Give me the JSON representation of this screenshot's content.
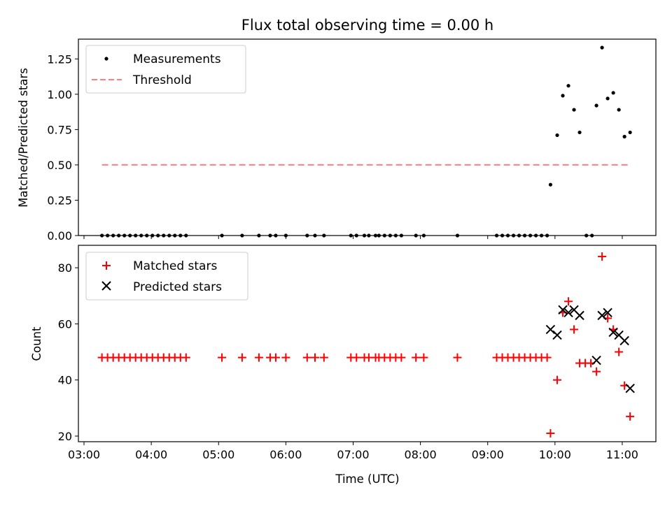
{
  "figure_title": "Flux total observing time = 0.00 h",
  "chart_data": [
    {
      "type": "scatter",
      "panel": "top",
      "ylabel": "Matched/Predicted stars",
      "xlabel": "",
      "xlim": [
        "02:55",
        "11:30"
      ],
      "ylim": [
        0,
        1.39
      ],
      "xticks": [
        "03:00",
        "04:00",
        "05:00",
        "06:00",
        "07:00",
        "08:00",
        "09:00",
        "10:00",
        "11:00"
      ],
      "yticks": [
        0.0,
        0.25,
        0.5,
        0.75,
        1.0,
        1.25
      ],
      "ytick_labels": [
        "0.00",
        "0.25",
        "0.50",
        "0.75",
        "1.00",
        "1.25"
      ],
      "legend_location": "upper-left",
      "series": [
        {
          "name": "Measurements",
          "kind": "scatter",
          "color": "#000000",
          "marker": "dot",
          "points": [
            [
              "03:16",
              0
            ],
            [
              "03:21",
              0
            ],
            [
              "03:26",
              0
            ],
            [
              "03:31",
              0
            ],
            [
              "03:36",
              0
            ],
            [
              "03:41",
              0
            ],
            [
              "03:46",
              0
            ],
            [
              "03:51",
              0
            ],
            [
              "03:56",
              0
            ],
            [
              "04:01",
              0
            ],
            [
              "04:06",
              0
            ],
            [
              "04:11",
              0
            ],
            [
              "04:16",
              0
            ],
            [
              "04:21",
              0
            ],
            [
              "04:26",
              0
            ],
            [
              "04:31",
              0
            ],
            [
              "05:03",
              0
            ],
            [
              "05:21",
              0
            ],
            [
              "05:36",
              0
            ],
            [
              "05:46",
              0
            ],
            [
              "05:51",
              0
            ],
            [
              "06:00",
              0
            ],
            [
              "06:19",
              0
            ],
            [
              "06:26",
              0
            ],
            [
              "06:34",
              0
            ],
            [
              "06:58",
              0
            ],
            [
              "07:03",
              0
            ],
            [
              "07:10",
              0
            ],
            [
              "07:14",
              0
            ],
            [
              "07:20",
              0
            ],
            [
              "07:23",
              0
            ],
            [
              "07:28",
              0
            ],
            [
              "07:33",
              0
            ],
            [
              "07:38",
              0
            ],
            [
              "07:43",
              0
            ],
            [
              "07:56",
              0
            ],
            [
              "08:03",
              0
            ],
            [
              "08:33",
              0
            ],
            [
              "09:08",
              0
            ],
            [
              "09:13",
              0
            ],
            [
              "09:18",
              0
            ],
            [
              "09:23",
              0
            ],
            [
              "09:28",
              0
            ],
            [
              "09:33",
              0
            ],
            [
              "09:38",
              0
            ],
            [
              "09:43",
              0
            ],
            [
              "09:48",
              0
            ],
            [
              "09:53",
              0
            ],
            [
              "10:28",
              0
            ],
            [
              "10:33",
              0
            ],
            [
              "09:56",
              0.36
            ],
            [
              "10:02",
              0.71
            ],
            [
              "10:07",
              0.99
            ],
            [
              "10:12",
              1.06
            ],
            [
              "10:17",
              0.89
            ],
            [
              "10:22",
              0.73
            ],
            [
              "10:37",
              0.92
            ],
            [
              "10:42",
              1.33
            ],
            [
              "10:47",
              0.97
            ],
            [
              "10:52",
              1.01
            ],
            [
              "10:57",
              0.89
            ],
            [
              "11:02",
              0.7
            ],
            [
              "11:07",
              0.73
            ]
          ]
        },
        {
          "name": "Threshold",
          "kind": "line",
          "color": "#ff7f7f",
          "dash": true,
          "points": [
            [
              "03:16",
              0.5
            ],
            [
              "11:07",
              0.5
            ]
          ]
        }
      ]
    },
    {
      "type": "scatter",
      "panel": "bottom",
      "ylabel": "Count",
      "xlabel": "Time (UTC)",
      "xlim": [
        "02:55",
        "11:30"
      ],
      "ylim": [
        18,
        88
      ],
      "xticks": [
        "03:00",
        "04:00",
        "05:00",
        "06:00",
        "07:00",
        "08:00",
        "09:00",
        "10:00",
        "11:00"
      ],
      "yticks": [
        20,
        40,
        60,
        80
      ],
      "ytick_labels": [
        "20",
        "40",
        "60",
        "80"
      ],
      "legend_location": "upper-left",
      "series": [
        {
          "name": "Matched stars",
          "kind": "scatter",
          "color": "#ff0000",
          "marker": "plus",
          "points": [
            [
              "03:16",
              48
            ],
            [
              "03:21",
              48
            ],
            [
              "03:26",
              48
            ],
            [
              "03:31",
              48
            ],
            [
              "03:36",
              48
            ],
            [
              "03:41",
              48
            ],
            [
              "03:46",
              48
            ],
            [
              "03:51",
              48
            ],
            [
              "03:56",
              48
            ],
            [
              "04:01",
              48
            ],
            [
              "04:06",
              48
            ],
            [
              "04:11",
              48
            ],
            [
              "04:16",
              48
            ],
            [
              "04:21",
              48
            ],
            [
              "04:26",
              48
            ],
            [
              "04:31",
              48
            ],
            [
              "05:03",
              48
            ],
            [
              "05:21",
              48
            ],
            [
              "05:36",
              48
            ],
            [
              "05:46",
              48
            ],
            [
              "05:51",
              48
            ],
            [
              "06:00",
              48
            ],
            [
              "06:19",
              48
            ],
            [
              "06:26",
              48
            ],
            [
              "06:34",
              48
            ],
            [
              "06:58",
              48
            ],
            [
              "07:03",
              48
            ],
            [
              "07:10",
              48
            ],
            [
              "07:14",
              48
            ],
            [
              "07:20",
              48
            ],
            [
              "07:23",
              48
            ],
            [
              "07:28",
              48
            ],
            [
              "07:33",
              48
            ],
            [
              "07:38",
              48
            ],
            [
              "07:43",
              48
            ],
            [
              "07:56",
              48
            ],
            [
              "08:03",
              48
            ],
            [
              "08:33",
              48
            ],
            [
              "09:08",
              48
            ],
            [
              "09:13",
              48
            ],
            [
              "09:18",
              48
            ],
            [
              "09:23",
              48
            ],
            [
              "09:28",
              48
            ],
            [
              "09:33",
              48
            ],
            [
              "09:38",
              48
            ],
            [
              "09:43",
              48
            ],
            [
              "09:48",
              48
            ],
            [
              "09:53",
              48
            ],
            [
              "09:56",
              21
            ],
            [
              "10:02",
              40
            ],
            [
              "10:07",
              64
            ],
            [
              "10:12",
              68
            ],
            [
              "10:17",
              58
            ],
            [
              "10:22",
              46
            ],
            [
              "10:27",
              46
            ],
            [
              "10:32",
              46
            ],
            [
              "10:37",
              43
            ],
            [
              "10:42",
              84
            ],
            [
              "10:47",
              62
            ],
            [
              "10:52",
              58
            ],
            [
              "10:57",
              50
            ],
            [
              "11:02",
              38
            ],
            [
              "11:07",
              27
            ]
          ]
        },
        {
          "name": "Predicted stars",
          "kind": "scatter",
          "color": "#000000",
          "marker": "cross",
          "points": [
            [
              "09:56",
              58
            ],
            [
              "10:02",
              56
            ],
            [
              "10:07",
              65
            ],
            [
              "10:12",
              64
            ],
            [
              "10:17",
              65
            ],
            [
              "10:22",
              63
            ],
            [
              "10:37",
              47
            ],
            [
              "10:42",
              63
            ],
            [
              "10:47",
              64
            ],
            [
              "10:52",
              57
            ],
            [
              "10:57",
              56
            ],
            [
              "11:02",
              54
            ],
            [
              "11:07",
              37
            ]
          ]
        }
      ]
    }
  ]
}
